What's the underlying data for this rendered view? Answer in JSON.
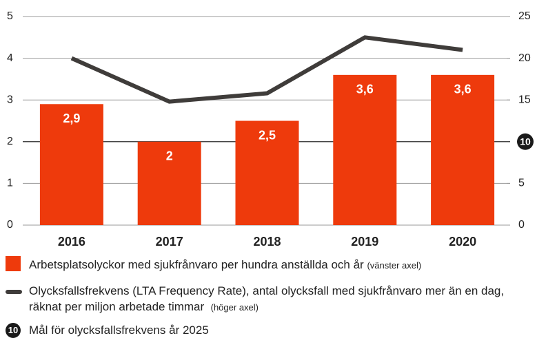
{
  "chart_data": {
    "type": "bar_line",
    "categories": [
      "2016",
      "2017",
      "2018",
      "2019",
      "2020"
    ],
    "series": [
      {
        "name": "Arbetsplatsolyckor med sjukfrånvaro per hundra anställda och år",
        "axis_note": "(vänster axel)",
        "type": "bar",
        "axis": "y",
        "color": "#ee3a0c",
        "values": [
          2.9,
          2,
          2.5,
          3.6,
          3.6
        ],
        "value_labels": [
          "2,9",
          "2",
          "2,5",
          "3,6",
          "3,6"
        ]
      },
      {
        "name": "Olycksfallsfrekvens (LTA Frequency Rate), antal olycksfall med sjukfrånvaro mer än en dag, räknat per miljon arbetade timmar",
        "axis_note": "(höger axel)",
        "type": "line",
        "axis": "y2",
        "color": "#3f3c3a",
        "values": [
          20,
          14.8,
          15.8,
          22.5,
          21
        ]
      }
    ],
    "target": {
      "name": "Mål för olycksfallsfrekvens år 2025",
      "value": 10,
      "label": "10",
      "axis": "y2",
      "color": "#1a1a1a"
    },
    "ylim": [
      0,
      5
    ],
    "yticks": [
      0,
      1,
      2,
      3,
      4,
      5
    ],
    "y2lim": [
      0,
      25
    ],
    "y2ticks": [
      0,
      5,
      10,
      15,
      20,
      25
    ],
    "grid": true
  }
}
